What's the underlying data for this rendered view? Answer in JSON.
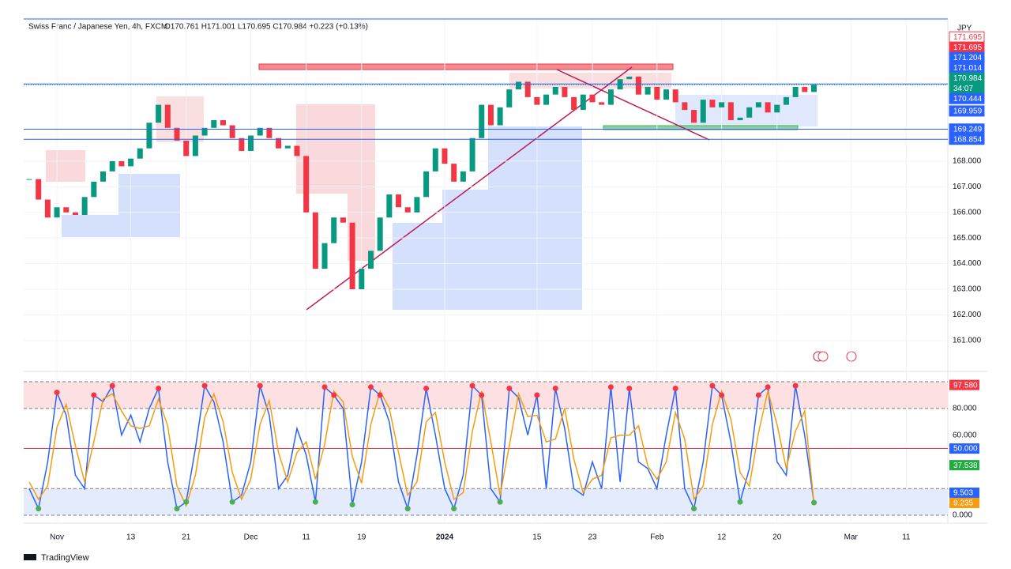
{
  "header": {
    "symbol": "Swiss Franc / Japanese Yen, 4h, FXCM",
    "ohlc": "O170.761 H171.001 L170.695 C170.984 +0.223 (+0.13%)",
    "currency": "JPY",
    "brand": "TradingView"
  },
  "chart_data": [
    {
      "type": "candlestick",
      "x": [
        -3,
        -2,
        -1,
        0,
        1,
        2,
        3,
        4,
        5,
        6,
        7,
        8,
        9,
        10,
        11,
        12,
        13,
        14,
        15,
        16,
        17,
        18,
        19,
        20,
        21,
        22,
        23,
        24,
        25,
        26,
        27,
        28,
        29,
        30,
        31,
        32,
        33,
        34,
        35,
        36,
        37,
        38,
        39,
        40,
        41,
        42,
        43,
        44,
        45,
        46,
        47,
        48,
        49,
        50,
        51,
        52,
        53,
        54,
        55,
        56,
        57,
        58,
        59,
        60,
        61,
        62,
        63,
        64,
        65,
        66,
        67,
        68,
        69,
        70,
        71,
        72,
        73,
        74,
        75,
        76,
        77,
        78,
        79,
        80,
        81,
        82
      ],
      "values": [
        167.3,
        166.5,
        165.8,
        166.2,
        166.0,
        165.9,
        166.6,
        167.2,
        167.6,
        168.0,
        167.8,
        168.1,
        168.5,
        169.5,
        170.2,
        169.3,
        168.8,
        168.2,
        169.0,
        169.3,
        169.6,
        169.4,
        168.9,
        168.4,
        169.0,
        169.3,
        168.9,
        168.5,
        168.6,
        168.2,
        166.0,
        163.8,
        164.8,
        165.8,
        165.6,
        163.0,
        163.8,
        164.5,
        165.8,
        166.7,
        166.2,
        166.0,
        166.6,
        167.6,
        168.5,
        167.9,
        167.2,
        167.6,
        168.9,
        170.2,
        169.4,
        170.1,
        170.8,
        171.1,
        170.5,
        170.2,
        170.6,
        170.9,
        170.5,
        170.0,
        170.6,
        170.3,
        170.2,
        170.8,
        171.2,
        171.3,
        170.6,
        170.9,
        170.4,
        170.8,
        170.3,
        170.0,
        169.5,
        170.4,
        170.1,
        170.3,
        169.6,
        169.7,
        170.1,
        170.3,
        169.9,
        170.2,
        170.5,
        170.9,
        170.7,
        170.984
      ],
      "up_color": "#089981",
      "down_color": "#f23645",
      "xlim": [
        -3.6,
        96.5
      ],
      "ylim": [
        160.1,
        173.52
      ],
      "yticks": [
        {
          "value": 168,
          "label": "168.000"
        },
        {
          "value": 167,
          "label": "167.000"
        },
        {
          "value": 166,
          "label": "166.000"
        },
        {
          "value": 165,
          "label": "165.000"
        },
        {
          "value": 164,
          "label": "164.000"
        },
        {
          "value": 163,
          "label": "163.000"
        },
        {
          "value": 162,
          "label": "162.000"
        },
        {
          "value": 161,
          "label": "161.000"
        }
      ],
      "xticks": [
        {
          "value": 0,
          "label": "Nov"
        },
        {
          "value": 8,
          "label": "13"
        },
        {
          "value": 14,
          "label": "21"
        },
        {
          "value": 21,
          "label": "Dec"
        },
        {
          "value": 27,
          "label": "11"
        },
        {
          "value": 33,
          "label": "19"
        },
        {
          "value": 42,
          "label": "2024"
        },
        {
          "value": 52,
          "label": "15"
        },
        {
          "value": 58,
          "label": "23"
        },
        {
          "value": 65,
          "label": "Feb"
        },
        {
          "value": 72,
          "label": "12"
        },
        {
          "value": 78,
          "label": "20"
        },
        {
          "value": 86,
          "label": "Mar"
        },
        {
          "value": 92,
          "label": "11"
        }
      ],
      "price_labels": [
        {
          "value": 171.695,
          "label": "171.695",
          "color": "#ffffff",
          "line": false
        },
        {
          "value": 171.695,
          "label": "171.695",
          "color": "#f23645",
          "line": false
        },
        {
          "value": 171.204,
          "label": "171.204",
          "color": "#2962ff",
          "line": false
        },
        {
          "value": 171.014,
          "label": "171.014",
          "color": "#2962ff",
          "line": true
        },
        {
          "value": 170.984,
          "label": "170.984",
          "color": "#089981",
          "line": false
        },
        {
          "value": 170.444,
          "label": "170.444",
          "color": "#2962ff",
          "line": false
        },
        {
          "value": 169.959,
          "label": "169.959",
          "color": "#2962ff",
          "line": false
        },
        {
          "value": 169.249,
          "label": "169.249",
          "color": "#2962ff",
          "line": true
        },
        {
          "value": 168.854,
          "label": "168.854",
          "color": "#2962ff",
          "line": true
        }
      ],
      "countdown": "34:07"
    },
    {
      "type": "line",
      "series": [
        {
          "name": "%K",
          "color": "#2962ff",
          "values": [
            20,
            5,
            40,
            92,
            75,
            30,
            20,
            90,
            85,
            97,
            60,
            75,
            55,
            80,
            95,
            40,
            5,
            10,
            50,
            97,
            85,
            55,
            10,
            15,
            40,
            97,
            75,
            20,
            30,
            65,
            45,
            10,
            96,
            90,
            80,
            8,
            40,
            96,
            90,
            70,
            25,
            5,
            45,
            95,
            60,
            20,
            5,
            30,
            97,
            90,
            20,
            10,
            95,
            88,
            60,
            90,
            20,
            95,
            65,
            20,
            15,
            40,
            20,
            96,
            25,
            95,
            40,
            35,
            20,
            60,
            95,
            20,
            5,
            40,
            97,
            90,
            55,
            10,
            35,
            90,
            96,
            40,
            30,
            97,
            60,
            9.503
          ]
        },
        {
          "name": "%D",
          "color": "#f59d0e",
          "values": [
            25,
            12,
            22,
            66,
            83,
            52,
            25,
            55,
            87,
            91,
            78,
            67,
            65,
            67,
            87,
            67,
            22,
            7,
            30,
            73,
            91,
            70,
            32,
            12,
            27,
            68,
            86,
            47,
            25,
            47,
            55,
            27,
            53,
            93,
            85,
            44,
            24,
            68,
            93,
            80,
            47,
            15,
            25,
            70,
            77,
            40,
            12,
            17,
            63,
            93,
            55,
            15,
            52,
            91,
            74,
            75,
            55,
            57,
            80,
            42,
            17,
            27,
            30,
            58,
            60,
            60,
            67,
            37,
            27,
            40,
            77,
            57,
            12,
            22,
            68,
            93,
            72,
            32,
            22,
            62,
            93,
            68,
            35,
            63,
            78,
            9.235
          ]
        }
      ],
      "ylim": [
        -4.7,
        101.8
      ],
      "yticks": [
        {
          "value": 80,
          "label": "80.000"
        },
        {
          "value": 60,
          "label": "60.000"
        },
        {
          "value": 0,
          "label": "0.000"
        }
      ],
      "levels": [
        100,
        80,
        50,
        20,
        0
      ],
      "badges": [
        {
          "value": 97.58,
          "label": "97.580",
          "color": "#f23645"
        },
        {
          "value": 50,
          "label": "50.000",
          "color": "#2962ff"
        },
        {
          "value": 37.538,
          "label": "37.538",
          "color": "#22ab3f"
        },
        {
          "value": 9.503,
          "label": "9.503",
          "color": "#2962ff"
        },
        {
          "value": 9.235,
          "label": "9.235",
          "color": "#f59d0e"
        }
      ]
    }
  ]
}
